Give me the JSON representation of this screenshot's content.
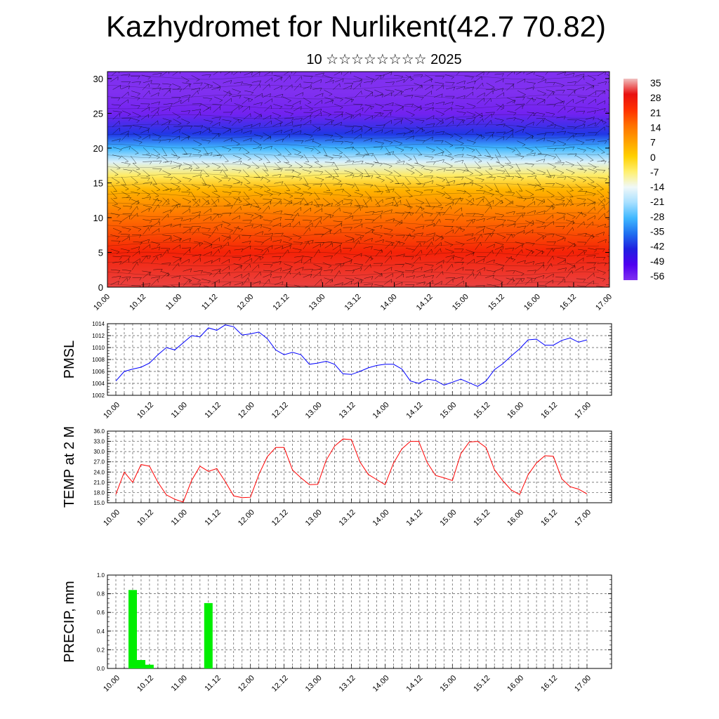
{
  "title": "Kazhydromet for Nurlikent(42.7 70.82)",
  "subtitle": "10 ☆☆☆☆☆☆☆☆ 2025",
  "x_ticks": [
    "10.00",
    "10.12",
    "11.00",
    "11.12",
    "12.00",
    "12.12",
    "13.00",
    "13.12",
    "14.00",
    "14.12",
    "15.00",
    "15.12",
    "16.00",
    "16.12",
    "17.00"
  ],
  "chart_data": [
    {
      "type": "heatmap",
      "title": "Kazhydromet for Nurlikent(42.7 70.82)",
      "subtitle": "10 ☆☆☆☆☆☆☆☆ 2025",
      "xlabel": "",
      "ylabel": "",
      "x_ticks": [
        "10.00",
        "10.12",
        "11.00",
        "11.12",
        "12.00",
        "12.12",
        "13.00",
        "13.12",
        "14.00",
        "14.12",
        "15.00",
        "15.12",
        "16.00",
        "16.12",
        "17.00"
      ],
      "y_ticks": [
        0,
        5,
        10,
        15,
        20,
        25,
        30
      ],
      "ylim": [
        0,
        31
      ],
      "colorbar_labels": [
        "35",
        "28",
        "21",
        "14",
        "7",
        "0",
        "-7",
        "-14",
        "-21",
        "-28",
        "-35",
        "-42",
        "-49",
        "-56"
      ],
      "colorbar_colors": [
        "#f0c0c0",
        "#e81010",
        "#ff3000",
        "#ff7000",
        "#ffa000",
        "#ffd000",
        "#fff070",
        "#f0f8f8",
        "#a8e0ff",
        "#40b8ff",
        "#2070f0",
        "#2020e0",
        "#5000f0",
        "#8030f0"
      ],
      "level_profile": [
        {
          "y": 0,
          "temp": 30
        },
        {
          "y": 5,
          "temp": 24
        },
        {
          "y": 10,
          "temp": 14
        },
        {
          "y": 14,
          "temp": 4
        },
        {
          "y": 16,
          "temp": -6
        },
        {
          "y": 18,
          "temp": -16
        },
        {
          "y": 20,
          "temp": -28
        },
        {
          "y": 22,
          "temp": -40
        },
        {
          "y": 25,
          "temp": -54
        },
        {
          "y": 28,
          "temp": -58
        },
        {
          "y": 31,
          "temp": -58
        }
      ],
      "grid": false
    },
    {
      "type": "line",
      "ylabel": "PMSL",
      "ylim": [
        1002,
        1014
      ],
      "y_ticks": [
        "1002",
        "1004",
        "1006",
        "1008",
        "1010",
        "1012",
        "1014"
      ],
      "series": [
        {
          "color": "#0000ff",
          "values": [
            1004.4,
            1006.0,
            1006.4,
            1006.7,
            1007.4,
            1008.8,
            1010.0,
            1009.6,
            1010.8,
            1012.0,
            1011.8,
            1013.3,
            1012.9,
            1013.8,
            1013.5,
            1012.1,
            1012.3,
            1012.6,
            1011.5,
            1009.6,
            1008.8,
            1009.2,
            1008.8,
            1007.2,
            1007.4,
            1007.7,
            1007.2,
            1005.6,
            1005.5,
            1006.0,
            1006.6,
            1007.0,
            1007.2,
            1007.2,
            1006.4,
            1004.4,
            1004.0,
            1004.7,
            1004.5,
            1003.7,
            1004.2,
            1004.7,
            1004.1,
            1003.5,
            1004.4,
            1006.3,
            1007.3,
            1008.6,
            1009.8,
            1011.3,
            1011.4,
            1010.4,
            1010.4,
            1011.2,
            1011.6,
            1010.9,
            1011.3
          ]
        }
      ],
      "grid": true
    },
    {
      "type": "line",
      "ylabel": "TEMP at 2 M",
      "ylim": [
        15,
        36
      ],
      "y_ticks": [
        "15.0",
        "18.0",
        "21.0",
        "24.0",
        "27.0",
        "30.0",
        "33.0",
        "36.0"
      ],
      "series": [
        {
          "color": "#ff0000",
          "values": [
            17.5,
            24.0,
            21.0,
            26.2,
            25.7,
            21.0,
            17.3,
            16.0,
            15.2,
            21.5,
            25.7,
            24.2,
            25.0,
            21.2,
            17.0,
            16.5,
            16.6,
            23.3,
            28.5,
            31.2,
            31.2,
            24.6,
            22.3,
            20.3,
            20.4,
            27.5,
            31.6,
            33.7,
            33.5,
            27.0,
            23.3,
            21.8,
            20.3,
            26.6,
            30.8,
            33.0,
            33.0,
            26.8,
            23.0,
            22.3,
            21.5,
            29.4,
            32.8,
            33.0,
            31.2,
            24.7,
            21.4,
            18.7,
            17.4,
            23.2,
            26.7,
            28.8,
            28.6,
            22.0,
            19.7,
            19.0,
            17.6
          ]
        }
      ],
      "grid": true
    },
    {
      "type": "bar",
      "ylabel": "PRECIP, mm",
      "ylim": [
        0,
        1
      ],
      "y_ticks": [
        "0.0",
        "0.2",
        "0.4",
        "0.6",
        "0.8",
        "1.0"
      ],
      "bars": [
        {
          "step": 2,
          "value": 0.84
        },
        {
          "step": 3,
          "value": 0.09
        },
        {
          "step": 4,
          "value": 0.04
        },
        {
          "step": 11,
          "value": 0.7
        }
      ],
      "color": "#00ee00",
      "grid": true
    }
  ],
  "colors": {
    "pmsl_line": "#0000ff",
    "temp_line": "#ff0000",
    "precip_bar": "#00ee00"
  }
}
